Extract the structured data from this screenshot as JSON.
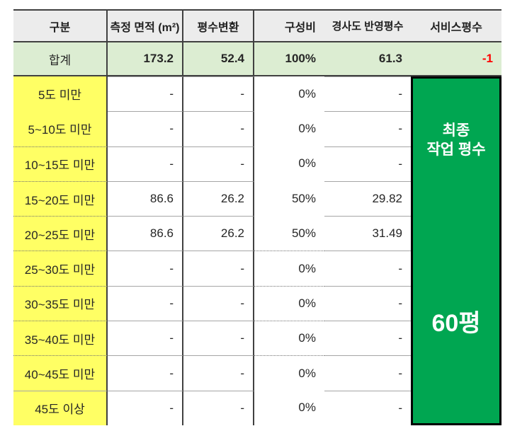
{
  "table": {
    "columns": [
      {
        "label": "구분"
      },
      {
        "label": "측정 면적 (m²)"
      },
      {
        "label": "평수변환"
      },
      {
        "label": "구성비"
      },
      {
        "label": "경사도 반영평수"
      },
      {
        "label": "서비스평수"
      }
    ],
    "total": {
      "category": "합계",
      "area": "173.2",
      "pyeong": "52.4",
      "ratio": "100%",
      "slope": "61.3",
      "service": "-1"
    },
    "rows": [
      {
        "category": "5도 미만",
        "area": "-",
        "pyeong": "-",
        "ratio": "0%",
        "slope": "-"
      },
      {
        "category": "5~10도 미만",
        "area": "-",
        "pyeong": "-",
        "ratio": "0%",
        "slope": "-"
      },
      {
        "category": "10~15도 미만",
        "area": "-",
        "pyeong": "-",
        "ratio": "0%",
        "slope": "-"
      },
      {
        "category": "15~20도 미만",
        "area": "86.6",
        "pyeong": "26.2",
        "ratio": "50%",
        "slope": "29.82"
      },
      {
        "category": "20~25도 미만",
        "area": "86.6",
        "pyeong": "26.2",
        "ratio": "50%",
        "slope": "31.49"
      },
      {
        "category": "25~30도 미만",
        "area": "-",
        "pyeong": "-",
        "ratio": "0%",
        "slope": "-"
      },
      {
        "category": "30~35도 미만",
        "area": "-",
        "pyeong": "-",
        "ratio": "0%",
        "slope": "-"
      },
      {
        "category": "35~40도 미만",
        "area": "-",
        "pyeong": "-",
        "ratio": "0%",
        "slope": "-"
      },
      {
        "category": "40~45도 미만",
        "area": "-",
        "pyeong": "-",
        "ratio": "0%",
        "slope": "-"
      },
      {
        "category": "45도 이상",
        "area": "-",
        "pyeong": "-",
        "ratio": "0%",
        "slope": "-"
      }
    ],
    "final": {
      "line1": "최종",
      "line2": "작업 평수",
      "value": "60평"
    },
    "colors": {
      "header_bg": "#ececec",
      "total_bg": "#dcedd2",
      "category_bg": "#ffff64",
      "panel_green": "#00a651",
      "negative_red": "#ff0000",
      "grid_dark": "#404040",
      "grid_light": "#a5a5a5"
    }
  }
}
